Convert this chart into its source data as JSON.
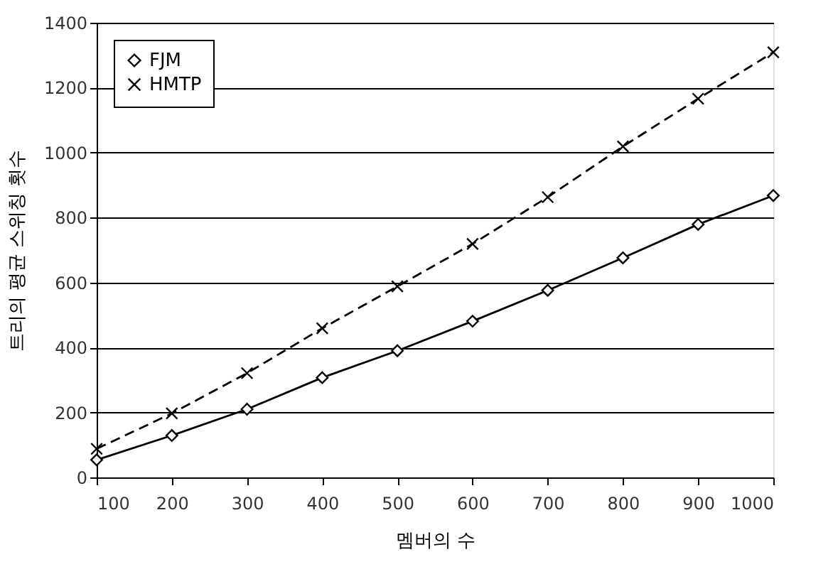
{
  "chart_data": {
    "type": "line",
    "xlabel": "멤버의 수",
    "ylabel": "트리의 평균 스위칭 횟수",
    "x": [
      100,
      200,
      300,
      400,
      500,
      600,
      700,
      800,
      900,
      1000
    ],
    "series": [
      {
        "name": "FJM",
        "color": "#000000",
        "marker": "diamond",
        "line_style": "solid",
        "values": [
          54,
          129,
          210,
          307,
          390,
          481,
          576,
          676,
          779,
          868
        ]
      },
      {
        "name": "HMTP",
        "color": "#000000",
        "marker": "cross",
        "line_style": "dashed",
        "values": [
          88,
          197,
          321,
          459,
          588,
          719,
          863,
          1019,
          1166,
          1309
        ]
      }
    ],
    "xlim": [
      100,
      1000
    ],
    "xticks": [
      100,
      200,
      300,
      400,
      500,
      600,
      700,
      800,
      900,
      1000
    ],
    "ylim": [
      0,
      1400
    ],
    "yticks": [
      0,
      200,
      400,
      600,
      800,
      1000,
      1200,
      1400
    ],
    "grid": "y",
    "legend": "top left"
  }
}
